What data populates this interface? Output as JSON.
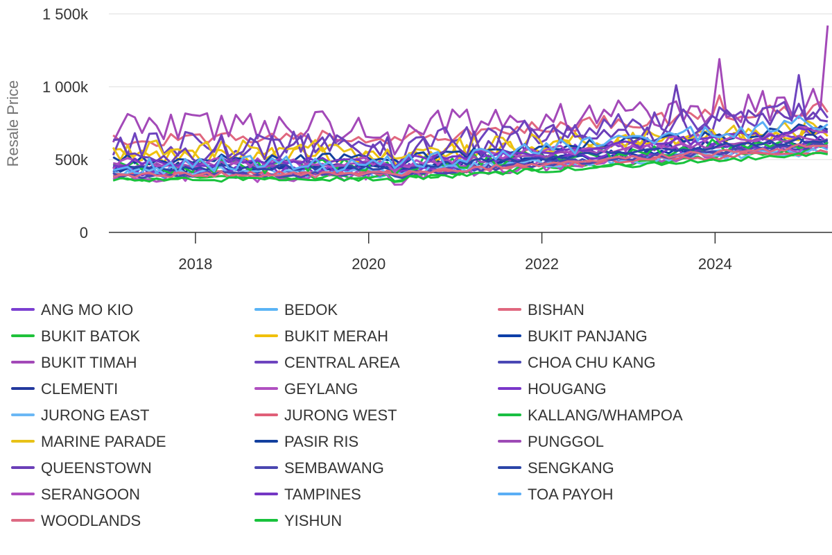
{
  "chart_data": {
    "type": "line",
    "title": "",
    "ylabel": "Resale Price",
    "xlabel": "",
    "x_ticks": [
      "2018",
      "2020",
      "2022",
      "2024"
    ],
    "y_ticks": [
      "0",
      "500k",
      "1 000k",
      "1 500k"
    ],
    "xlim": [
      2017.0,
      2025.35
    ],
    "ylim": [
      0,
      1500000
    ],
    "grid": true,
    "legend_position": "bottom",
    "start_month": "2017-01",
    "months": 100,
    "series": [
      {
        "name": "ANG MO KIO",
        "color": "#7b3fd1",
        "start": 430000,
        "end": 720000,
        "noise": 45000
      },
      {
        "name": "BEDOK",
        "color": "#5ab4f5",
        "start": 400000,
        "end": 590000,
        "noise": 30000
      },
      {
        "name": "BISHAN",
        "color": "#e0677f",
        "start": 640000,
        "end": 860000,
        "noise": 50000
      },
      {
        "name": "BUKIT BATOK",
        "color": "#1fc23a",
        "start": 370000,
        "end": 560000,
        "noise": 20000
      },
      {
        "name": "BUKIT MERAH",
        "color": "#f0c00a",
        "start": 520000,
        "end": 700000,
        "noise": 60000
      },
      {
        "name": "BUKIT PANJANG",
        "color": "#0d3fa8",
        "start": 430000,
        "end": 620000,
        "noise": 22000
      },
      {
        "name": "BUKIT TIMAH",
        "color": "#a349b8",
        "start": 720000,
        "end": 900000,
        "noise": 110000
      },
      {
        "name": "CENTRAL AREA",
        "color": "#6e44bf",
        "start": 600000,
        "end": 840000,
        "noise": 90000
      },
      {
        "name": "CHOA CHU KANG",
        "color": "#4a48b5",
        "start": 400000,
        "end": 600000,
        "noise": 20000
      },
      {
        "name": "CLEMENTI",
        "color": "#23399e",
        "start": 440000,
        "end": 650000,
        "noise": 40000
      },
      {
        "name": "GEYLANG",
        "color": "#b050c0",
        "start": 380000,
        "end": 600000,
        "noise": 40000
      },
      {
        "name": "HOUGANG",
        "color": "#7a36c9",
        "start": 420000,
        "end": 630000,
        "noise": 35000
      },
      {
        "name": "JURONG EAST",
        "color": "#6bb8f5",
        "start": 420000,
        "end": 560000,
        "noise": 30000
      },
      {
        "name": "JURONG WEST",
        "color": "#e05f78",
        "start": 400000,
        "end": 560000,
        "noise": 20000
      },
      {
        "name": "KALLANG/WHAMPOA",
        "color": "#19bf42",
        "start": 450000,
        "end": 640000,
        "noise": 50000
      },
      {
        "name": "MARINE PARADE",
        "color": "#e8c218",
        "start": 560000,
        "end": 720000,
        "noise": 70000
      },
      {
        "name": "PASIR RIS",
        "color": "#13409e",
        "start": 500000,
        "end": 720000,
        "noise": 35000
      },
      {
        "name": "PUNGGOL",
        "color": "#9d4ab5",
        "start": 460000,
        "end": 650000,
        "noise": 25000
      },
      {
        "name": "QUEENSTOWN",
        "color": "#6b3fb8",
        "start": 560000,
        "end": 800000,
        "noise": 100000
      },
      {
        "name": "SEMBAWANG",
        "color": "#4a46b0",
        "start": 390000,
        "end": 600000,
        "noise": 20000
      },
      {
        "name": "SENGKANG",
        "color": "#2b45a8",
        "start": 440000,
        "end": 640000,
        "noise": 20000
      },
      {
        "name": "SERANGOON",
        "color": "#ad4cc0",
        "start": 470000,
        "end": 700000,
        "noise": 40000
      },
      {
        "name": "TAMPINES",
        "color": "#7436c4",
        "start": 480000,
        "end": 700000,
        "noise": 30000
      },
      {
        "name": "TOA PAYOH",
        "color": "#5aaef5",
        "start": 460000,
        "end": 760000,
        "noise": 60000
      },
      {
        "name": "WOODLANDS",
        "color": "#dd6a83",
        "start": 390000,
        "end": 600000,
        "noise": 20000
      },
      {
        "name": "YISHUN",
        "color": "#18c23c",
        "start": 360000,
        "end": 540000,
        "noise": 15000
      }
    ]
  }
}
